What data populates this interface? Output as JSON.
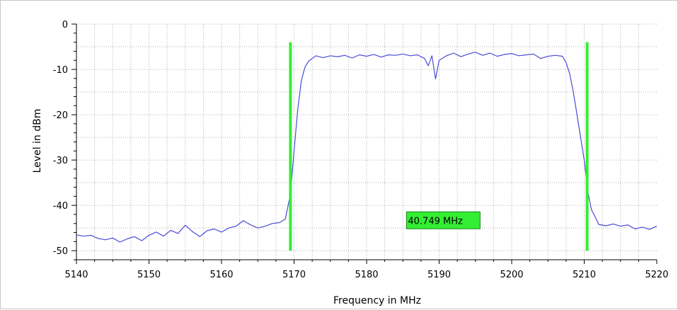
{
  "chart_data": {
    "type": "line",
    "xlabel": "Frequency in MHz",
    "ylabel": "Level in dBm",
    "xlim": [
      5140,
      5220
    ],
    "ylim": [
      -52,
      0
    ],
    "xticks": [
      5140,
      5150,
      5160,
      5170,
      5180,
      5190,
      5200,
      5210,
      5220
    ],
    "xtick_labels": [
      "5140",
      "5150",
      "5160",
      "5170",
      "5180",
      "5190",
      "5200",
      "5210",
      "5220"
    ],
    "yticks": [
      0,
      -10,
      -20,
      -30,
      -40,
      -50
    ],
    "ytick_labels": [
      "0",
      "-10",
      "-20",
      "-30",
      "-40",
      "-50"
    ],
    "grid": true,
    "line_color": "#4b4bd8",
    "marker_color": "#33ee33",
    "markers": [
      {
        "x": 5169.5,
        "y_top": -4,
        "y_bottom": -50
      },
      {
        "x": 5210.4,
        "y_top": -4,
        "y_bottom": -50
      }
    ],
    "annotation": {
      "text": "40.749 MHz",
      "x": 5185.5,
      "y": -43.3
    },
    "series": [
      {
        "x": [
          5140,
          5141,
          5142,
          5143,
          5144,
          5145,
          5146,
          5147,
          5148,
          5149,
          5150,
          5151,
          5152,
          5153,
          5154,
          5155,
          5156,
          5157,
          5158,
          5159,
          5160,
          5161,
          5162,
          5163,
          5164,
          5165,
          5166,
          5167,
          5168,
          5168.8,
          5169.5,
          5170,
          5170.5,
          5171,
          5171.5,
          5172,
          5173,
          5174,
          5175,
          5176,
          5177,
          5178,
          5179,
          5180,
          5181,
          5182,
          5183,
          5184,
          5185,
          5186,
          5187,
          5188,
          5188.5,
          5189,
          5189.5,
          5190,
          5191,
          5192,
          5193,
          5194,
          5195,
          5196,
          5197,
          5198,
          5199,
          5200,
          5201,
          5202,
          5203,
          5204,
          5205,
          5206,
          5207,
          5207.5,
          5208,
          5208.5,
          5209,
          5209.5,
          5210,
          5210.5,
          5211,
          5211.5,
          5212,
          5213,
          5214,
          5215,
          5216,
          5217,
          5218,
          5219,
          5220
        ],
        "values": [
          -46.5,
          -46.8,
          -46.6,
          -47.3,
          -47.6,
          -47.2,
          -48.1,
          -47.4,
          -46.9,
          -47.8,
          -46.6,
          -45.9,
          -46.8,
          -45.5,
          -46.2,
          -44.4,
          -45.8,
          -46.9,
          -45.6,
          -45.2,
          -45.9,
          -45.0,
          -44.6,
          -43.4,
          -44.3,
          -45.0,
          -44.6,
          -44.0,
          -43.8,
          -43.0,
          -37.5,
          -28.0,
          -19.0,
          -12.5,
          -9.5,
          -8.2,
          -7.0,
          -7.4,
          -7.0,
          -7.2,
          -6.9,
          -7.5,
          -6.8,
          -7.1,
          -6.7,
          -7.3,
          -6.8,
          -6.9,
          -6.6,
          -7.0,
          -6.8,
          -7.6,
          -9.2,
          -7.0,
          -12.1,
          -8.0,
          -7.0,
          -6.4,
          -7.2,
          -6.6,
          -6.2,
          -6.9,
          -6.4,
          -7.1,
          -6.7,
          -6.5,
          -7.0,
          -6.8,
          -6.6,
          -7.6,
          -7.1,
          -6.9,
          -7.1,
          -8.5,
          -11.0,
          -15.0,
          -20.0,
          -25.0,
          -30.0,
          -37.0,
          -41.0,
          -42.5,
          -44.2,
          -44.5,
          -44.1,
          -44.6,
          -44.3,
          -45.2,
          -44.8,
          -45.3,
          -44.6
        ]
      }
    ]
  }
}
